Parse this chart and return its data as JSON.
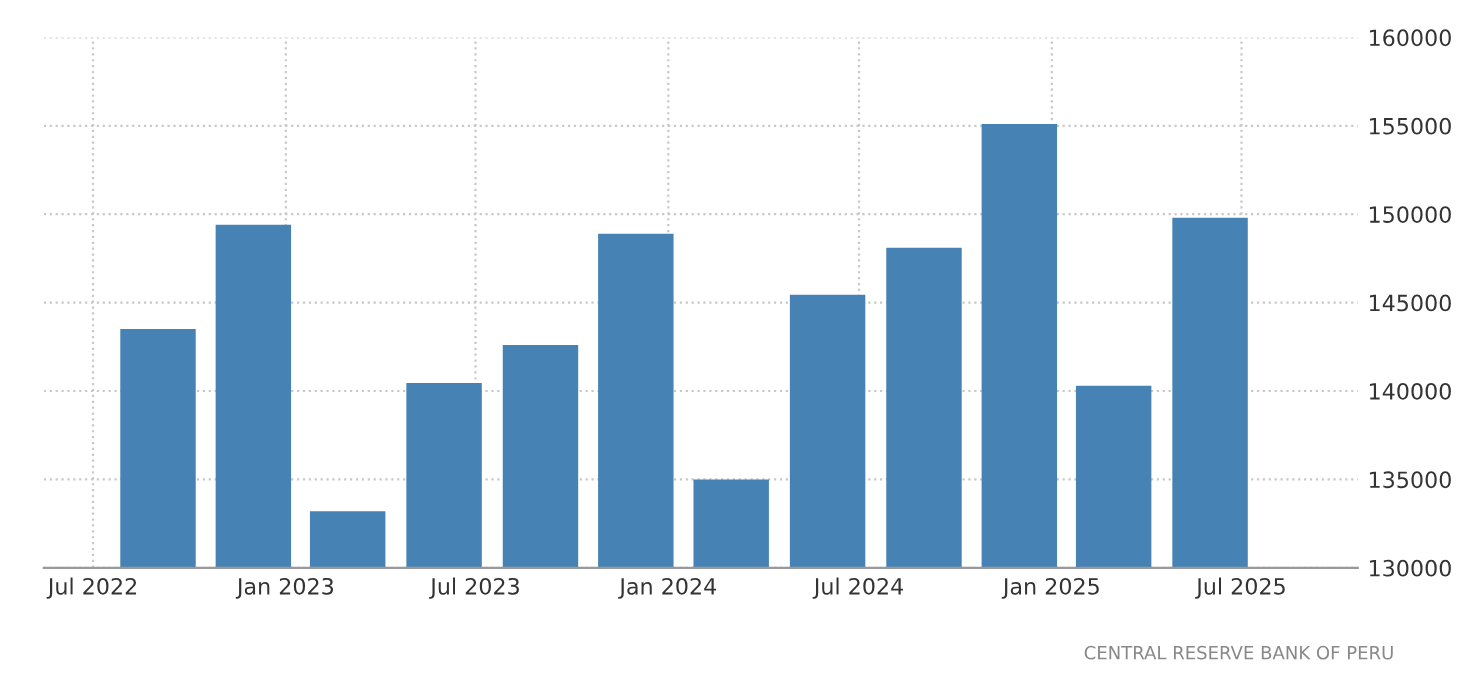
{
  "chart_data": {
    "type": "bar",
    "x": [
      "2022-09",
      "2022-12",
      "2023-03",
      "2023-06",
      "2023-09",
      "2023-12",
      "2024-03",
      "2024-06",
      "2024-09",
      "2024-12",
      "2025-03",
      "2025-06"
    ],
    "values": [
      143500,
      149400,
      133200,
      140450,
      142600,
      148900,
      135000,
      145450,
      148100,
      155100,
      140300,
      149800
    ],
    "color": "#4682b4",
    "xlim": [
      "2022-05-15",
      "2025-10-20"
    ],
    "xticks": [
      {
        "value": "2022-07",
        "label": "Jul 2022"
      },
      {
        "value": "2023-01",
        "label": "Jan 2023"
      },
      {
        "value": "2023-07",
        "label": "Jul 2023"
      },
      {
        "value": "2024-01",
        "label": "Jan 2024"
      },
      {
        "value": "2024-07",
        "label": "Jul 2024"
      },
      {
        "value": "2025-01",
        "label": "Jan 2025"
      },
      {
        "value": "2025-07",
        "label": "Jul 2025"
      }
    ],
    "ylim": [
      130000,
      160000
    ],
    "yticks": [
      130000,
      135000,
      140000,
      145000,
      150000,
      155000,
      160000
    ],
    "grid": true,
    "annotations": [
      "CENTRAL RESERVE BANK OF PERU"
    ]
  }
}
